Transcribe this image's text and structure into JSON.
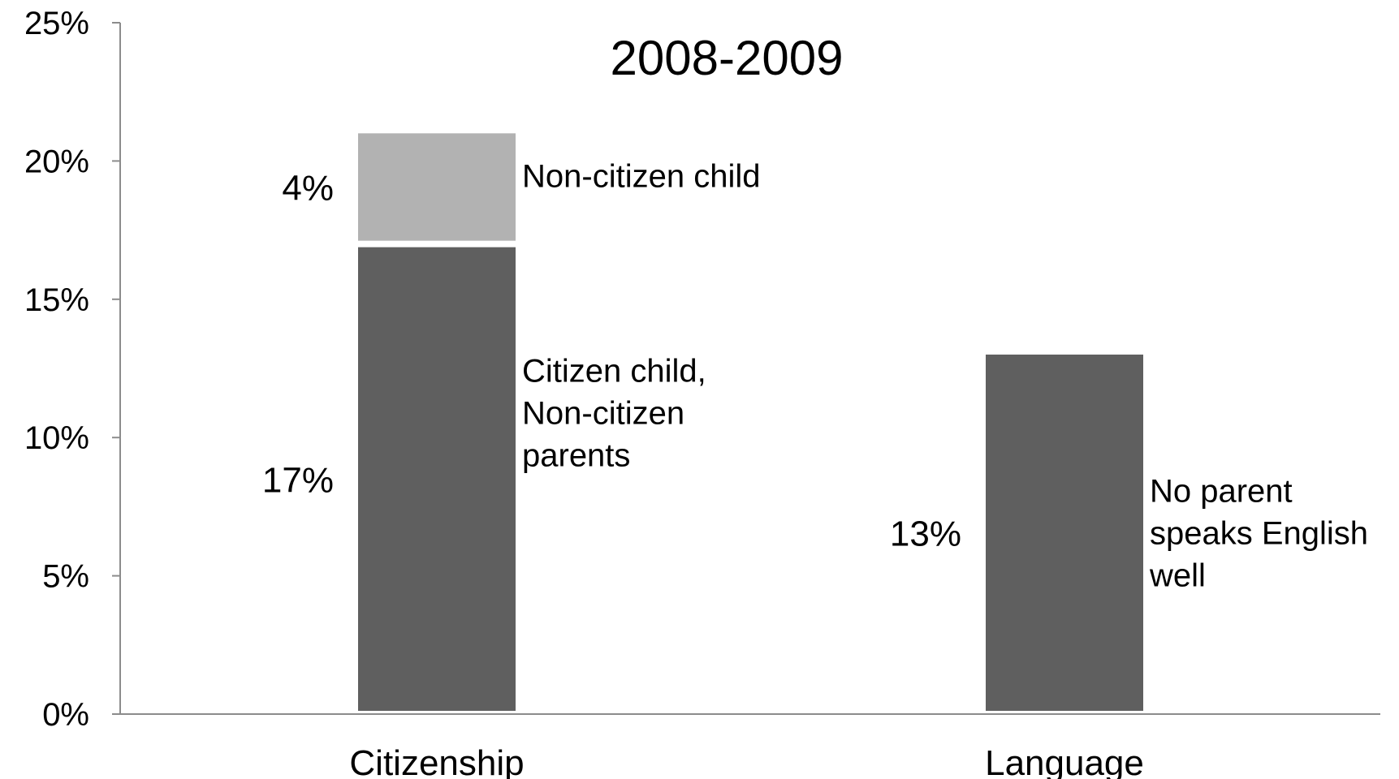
{
  "chart_data": {
    "type": "bar",
    "stacked": true,
    "title": "2008-2009",
    "xlabel": "",
    "ylabel": "",
    "ylim": [
      0,
      25
    ],
    "y_ticks": [
      "0%",
      "5%",
      "10%",
      "15%",
      "20%",
      "25%"
    ],
    "y_tick_values": [
      0,
      5,
      10,
      15,
      20,
      25
    ],
    "grid": false,
    "legend": "none",
    "categories": [
      "Citizenship",
      "Language"
    ],
    "bars": [
      {
        "category": "Citizenship",
        "segments": [
          {
            "label_lines": [
              "Citizen child,",
              "Non-citizen",
              "parents"
            ],
            "value": 17,
            "value_label": "17%",
            "color": "#5f5f5f"
          },
          {
            "label_lines": [
              "Non-citizen child"
            ],
            "value": 4,
            "value_label": "4%",
            "color": "#b2b2b2"
          }
        ]
      },
      {
        "category": "Language",
        "segments": [
          {
            "label_lines": [
              "No parent",
              "speaks English",
              "well"
            ],
            "value": 13,
            "value_label": "13%",
            "color": "#5f5f5f"
          }
        ]
      }
    ]
  }
}
